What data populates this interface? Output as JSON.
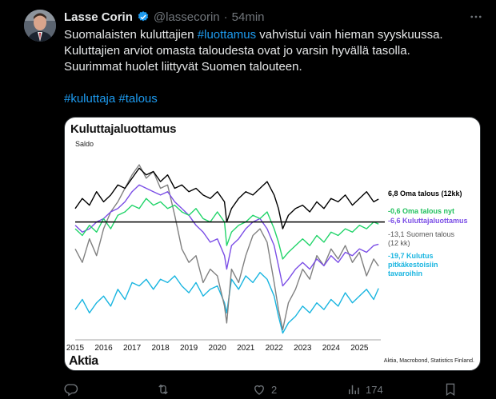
{
  "tweet": {
    "author_name": "Lasse Corin",
    "handle": "@lassecorin",
    "separator": "·",
    "time": "54min",
    "line1_prefix": "Suomalaisten kuluttajien ",
    "line1_hashtag": "#luottamus",
    "line1_suffix": " vahvistui vain hieman syyskuussa.",
    "line2": "Kuluttajien arviot omasta taloudesta ovat jo varsin hyvällä tasolla.",
    "line3": "Suurimmat huolet liittyvät Suomen talouteen.",
    "hashtag1": "#kuluttaja",
    "hashtag2": "#talous"
  },
  "icons": {
    "verified": "verified-badge-icon",
    "more": "more-icon",
    "reply": "reply-icon",
    "retweet": "retweet-icon",
    "like": "like-icon",
    "views": "views-icon",
    "bookmark": "bookmark-icon"
  },
  "actions": {
    "like_count": "2",
    "views_count": "174"
  },
  "chart_data": {
    "type": "line",
    "title": "Kuluttajaluottamus",
    "ylabel": "Saldo",
    "x_ticks": [
      "2015",
      "2016",
      "2017",
      "2018",
      "2019",
      "2020",
      "2021",
      "2022",
      "2023",
      "2024",
      "2025"
    ],
    "x_range": [
      2015.0,
      2025.75
    ],
    "y_range": [
      -35,
      22
    ],
    "zero_line": 0,
    "series": [
      {
        "name": "6,8 Oma talous (12kk)",
        "label_lines": [
          "6,8 Oma talous (12kk)"
        ],
        "color": "#000000",
        "x": [
          2015.0,
          2015.25,
          2015.5,
          2015.75,
          2016.0,
          2016.25,
          2016.5,
          2016.75,
          2017.0,
          2017.25,
          2017.5,
          2017.75,
          2018.0,
          2018.25,
          2018.5,
          2018.75,
          2019.0,
          2019.25,
          2019.5,
          2019.75,
          2020.0,
          2020.25,
          2020.33,
          2020.5,
          2020.75,
          2021.0,
          2021.25,
          2021.5,
          2021.75,
          2022.0,
          2022.15,
          2022.3,
          2022.5,
          2022.75,
          2023.0,
          2023.25,
          2023.5,
          2023.75,
          2024.0,
          2024.25,
          2024.5,
          2024.75,
          2025.0,
          2025.25,
          2025.5,
          2025.67
        ],
        "y": [
          4,
          7,
          5,
          9,
          6,
          8,
          11,
          10,
          13,
          16,
          14,
          15,
          12,
          14,
          10,
          11,
          9,
          10,
          8,
          7,
          9,
          6,
          0,
          4,
          7,
          9,
          8,
          10,
          12,
          8,
          4,
          -2,
          2,
          4,
          5,
          3,
          6,
          4,
          7,
          6,
          8,
          5,
          7,
          9,
          6,
          6.8
        ]
      },
      {
        "name": "-0,6 Oma talous nyt",
        "label_lines": [
          "-0,6 Oma talous nyt"
        ],
        "color": "#22d46a",
        "x": [
          2015.0,
          2015.25,
          2015.5,
          2015.75,
          2016.0,
          2016.25,
          2016.5,
          2016.75,
          2017.0,
          2017.25,
          2017.5,
          2017.75,
          2018.0,
          2018.25,
          2018.5,
          2018.75,
          2019.0,
          2019.25,
          2019.5,
          2019.75,
          2020.0,
          2020.25,
          2020.33,
          2020.5,
          2020.75,
          2021.0,
          2021.25,
          2021.5,
          2021.75,
          2022.0,
          2022.15,
          2022.3,
          2022.5,
          2022.75,
          2023.0,
          2023.25,
          2023.5,
          2023.75,
          2024.0,
          2024.25,
          2024.5,
          2024.75,
          2025.0,
          2025.25,
          2025.5,
          2025.67
        ],
        "y": [
          -2,
          -4,
          -1,
          -3,
          1,
          -2,
          2,
          3,
          5,
          4,
          7,
          5,
          6,
          4,
          5,
          3,
          2,
          4,
          1,
          0,
          3,
          0,
          -7,
          -3,
          -1,
          0,
          2,
          1,
          3,
          -2,
          -6,
          -11,
          -9,
          -7,
          -5,
          -7,
          -4,
          -6,
          -3,
          -4,
          -2,
          -3,
          -1,
          -2,
          0,
          -0.6
        ]
      },
      {
        "name": "-6,6 Kuluttajaluottamus",
        "label_lines": [
          "-6,6 Kuluttajaluottamus"
        ],
        "color": "#7b4ee6",
        "x": [
          2015.0,
          2015.25,
          2015.5,
          2015.75,
          2016.0,
          2016.25,
          2016.5,
          2016.75,
          2017.0,
          2017.25,
          2017.5,
          2017.75,
          2018.0,
          2018.25,
          2018.5,
          2018.75,
          2019.0,
          2019.25,
          2019.5,
          2019.75,
          2020.0,
          2020.25,
          2020.33,
          2020.5,
          2020.75,
          2021.0,
          2021.25,
          2021.5,
          2021.75,
          2022.0,
          2022.15,
          2022.3,
          2022.5,
          2022.75,
          2023.0,
          2023.25,
          2023.5,
          2023.75,
          2024.0,
          2024.25,
          2024.5,
          2024.75,
          2025.0,
          2025.25,
          2025.5,
          2025.67
        ],
        "y": [
          -1,
          -3,
          -2,
          0,
          1,
          3,
          4,
          6,
          9,
          11,
          10,
          9,
          8,
          9,
          6,
          4,
          2,
          -1,
          -3,
          -6,
          -5,
          -10,
          -14,
          -7,
          -5,
          -2,
          0,
          1,
          -2,
          -7,
          -13,
          -19,
          -17,
          -14,
          -12,
          -14,
          -11,
          -13,
          -10,
          -12,
          -9,
          -10,
          -8,
          -9,
          -7,
          -6.6
        ]
      },
      {
        "name": "-13,1 Suomen talous (12 kk)",
        "label_lines": [
          "-13,1 Suomen talous",
          "(12 kk)"
        ],
        "color": "#808080",
        "x": [
          2015.0,
          2015.25,
          2015.5,
          2015.75,
          2016.0,
          2016.25,
          2016.5,
          2016.75,
          2017.0,
          2017.25,
          2017.5,
          2017.75,
          2018.0,
          2018.25,
          2018.5,
          2018.75,
          2019.0,
          2019.25,
          2019.5,
          2019.75,
          2020.0,
          2020.25,
          2020.33,
          2020.5,
          2020.75,
          2021.0,
          2021.25,
          2021.5,
          2021.75,
          2022.0,
          2022.15,
          2022.3,
          2022.5,
          2022.75,
          2023.0,
          2023.25,
          2023.5,
          2023.75,
          2024.0,
          2024.25,
          2024.5,
          2024.75,
          2025.0,
          2025.25,
          2025.5,
          2025.67
        ],
        "y": [
          -8,
          -12,
          -5,
          -10,
          -2,
          3,
          6,
          10,
          14,
          17,
          13,
          15,
          10,
          11,
          2,
          -8,
          -12,
          -10,
          -18,
          -14,
          -16,
          -25,
          -30,
          -14,
          -18,
          -10,
          -4,
          -2,
          -6,
          -18,
          -26,
          -32,
          -24,
          -20,
          -14,
          -17,
          -10,
          -13,
          -8,
          -11,
          -7,
          -12,
          -9,
          -16,
          -11,
          -13.1
        ]
      },
      {
        "name": "-19,7 Kulutus pitkäkestoisiin tavaroihin",
        "label_lines": [
          "-19,7 Kulutus",
          "pitkäkestoisiin",
          "tavaroihin"
        ],
        "color": "#19b5e0",
        "x": [
          2015.0,
          2015.25,
          2015.5,
          2015.75,
          2016.0,
          2016.25,
          2016.5,
          2016.75,
          2017.0,
          2017.25,
          2017.5,
          2017.75,
          2018.0,
          2018.25,
          2018.5,
          2018.75,
          2019.0,
          2019.25,
          2019.5,
          2019.75,
          2020.0,
          2020.25,
          2020.33,
          2020.5,
          2020.75,
          2021.0,
          2021.25,
          2021.5,
          2021.75,
          2022.0,
          2022.15,
          2022.3,
          2022.5,
          2022.75,
          2023.0,
          2023.25,
          2023.5,
          2023.75,
          2024.0,
          2024.25,
          2024.5,
          2024.75,
          2025.0,
          2025.25,
          2025.5,
          2025.67
        ],
        "y": [
          -26,
          -23,
          -27,
          -24,
          -22,
          -25,
          -20,
          -23,
          -18,
          -19,
          -17,
          -20,
          -17,
          -18,
          -16,
          -19,
          -21,
          -18,
          -22,
          -20,
          -19,
          -24,
          -27,
          -17,
          -20,
          -16,
          -18,
          -15,
          -17,
          -22,
          -28,
          -33,
          -30,
          -28,
          -25,
          -27,
          -24,
          -26,
          -23,
          -25,
          -21,
          -24,
          -22,
          -20,
          -23,
          -19.7
        ]
      }
    ],
    "source": "Aktia, Macrobond, Statistics Finland.",
    "brand": "Aktia"
  }
}
